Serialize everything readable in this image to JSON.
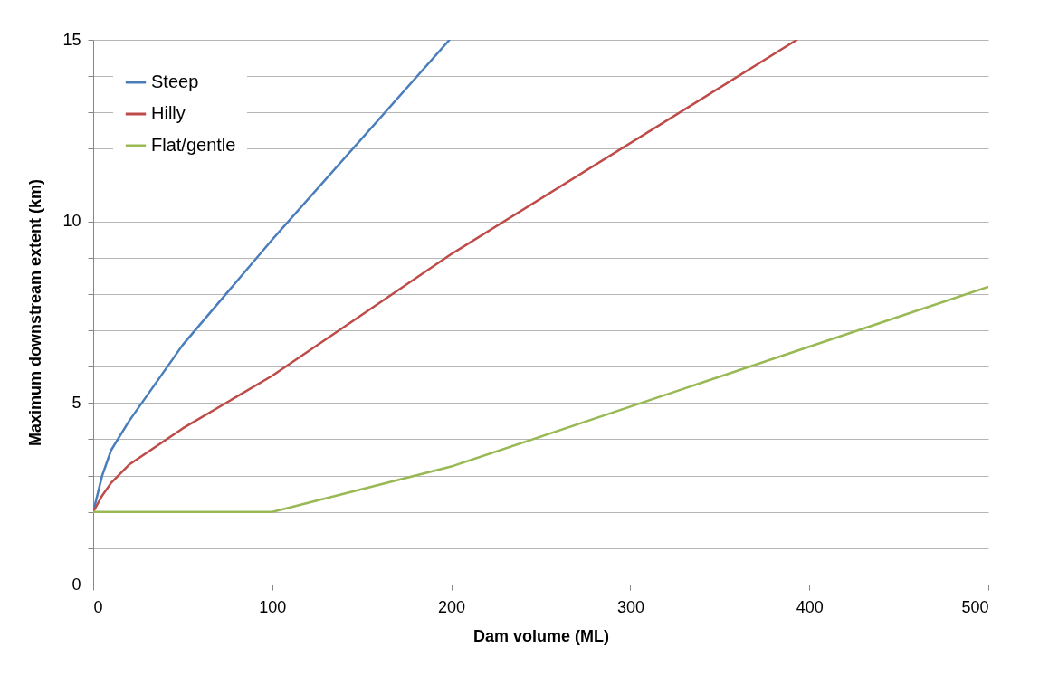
{
  "chart_data": {
    "type": "line",
    "xlabel": "Dam volume (ML)",
    "ylabel": "Maximum downstream extent (km)",
    "xlim": [
      0,
      500
    ],
    "xticks": [
      0,
      100,
      200,
      300,
      400,
      500
    ],
    "ylim": [
      0,
      15
    ],
    "yticks": [
      0,
      {
        "value": 1,
        "label": null
      },
      {
        "value": 2,
        "label": null
      },
      {
        "value": 3,
        "label": null
      },
      {
        "value": 4,
        "label": null
      },
      5,
      {
        "value": 6,
        "label": null
      },
      {
        "value": 7,
        "label": null
      },
      {
        "value": 8,
        "label": null
      },
      {
        "value": 9,
        "label": null
      },
      10,
      {
        "value": 11,
        "label": null
      },
      {
        "value": 12,
        "label": null
      },
      {
        "value": 13,
        "label": null
      },
      {
        "value": 14,
        "label": null
      },
      15
    ],
    "grid": "y",
    "legend": "top left",
    "line_style": "solid",
    "marker": "none",
    "series": [
      {
        "name": "Steep",
        "color": "#4a7ebb",
        "x": [
          0,
          5,
          10,
          20,
          50,
          100,
          199
        ],
        "values": [
          2,
          3.0,
          3.7,
          4.5,
          6.6,
          9.5,
          15
        ]
      },
      {
        "name": "Hilly",
        "color": "#be4b48",
        "x": [
          0,
          5,
          10,
          20,
          50,
          100,
          200,
          393
        ],
        "values": [
          2,
          2.45,
          2.8,
          3.3,
          4.3,
          5.75,
          9.1,
          15
        ]
      },
      {
        "name": "Flat/gentle",
        "color": "#98b954",
        "x": [
          0,
          100,
          200,
          500
        ],
        "values": [
          2,
          2,
          3.25,
          8.2
        ]
      }
    ]
  }
}
